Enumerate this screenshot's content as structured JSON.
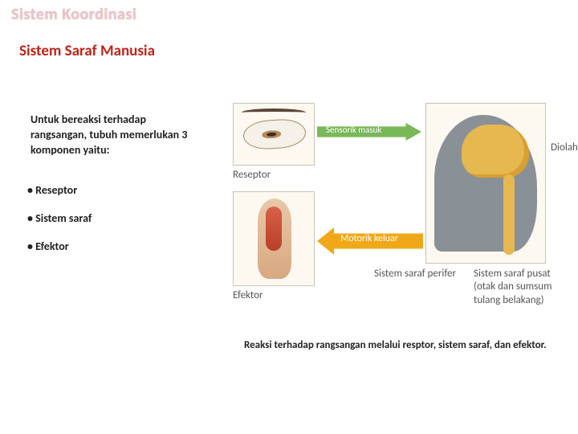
{
  "header": {
    "page_title": "Sistem Koordinasi",
    "sub_title": "Sistem Saraf Manusia"
  },
  "left": {
    "intro": "Untuk bereaksi terhadap rangsangan, tubuh memerlukan 3 komponen yaitu:",
    "bullets": [
      "• Reseptor",
      "• Sistem saraf",
      "• Efektor"
    ]
  },
  "diagram": {
    "type": "flowchart",
    "background_color": "#fdf9f0",
    "panel_border": "#c9c4b8",
    "nodes": {
      "reseptor": {
        "label": "Reseptor",
        "label_color": "#555555"
      },
      "efektor": {
        "label": "Efektor",
        "label_color": "#555555"
      },
      "diolah": {
        "label": "Diolah",
        "label_color": "#555555"
      },
      "perifer": {
        "label": "Sistem saraf perifer",
        "label_color": "#555555"
      },
      "pusat": {
        "label": "Sistem saraf pusat (otak dan sumsum tulang belakang)",
        "label_color": "#555555"
      }
    },
    "arrows": {
      "sensorik": {
        "label": "Sensorik masuk",
        "color": "#78b858",
        "text_color": "#ffffff"
      },
      "motorik": {
        "label": "Motorik keluar",
        "color": "#f0a818",
        "text_color": "#ffffff"
      }
    },
    "colors": {
      "head_silhouette": "#8a9196",
      "brain": "#e6b850",
      "spine": "#e6b850",
      "leg_skin": "#e0b890",
      "leg_muscle": "#c85038",
      "eye_iris": "#b8885a",
      "eye_pupil": "#3a2f28"
    }
  },
  "caption": "Reaksi terhadap rangsangan melalui resptor, sistem saraf, dan efektor."
}
